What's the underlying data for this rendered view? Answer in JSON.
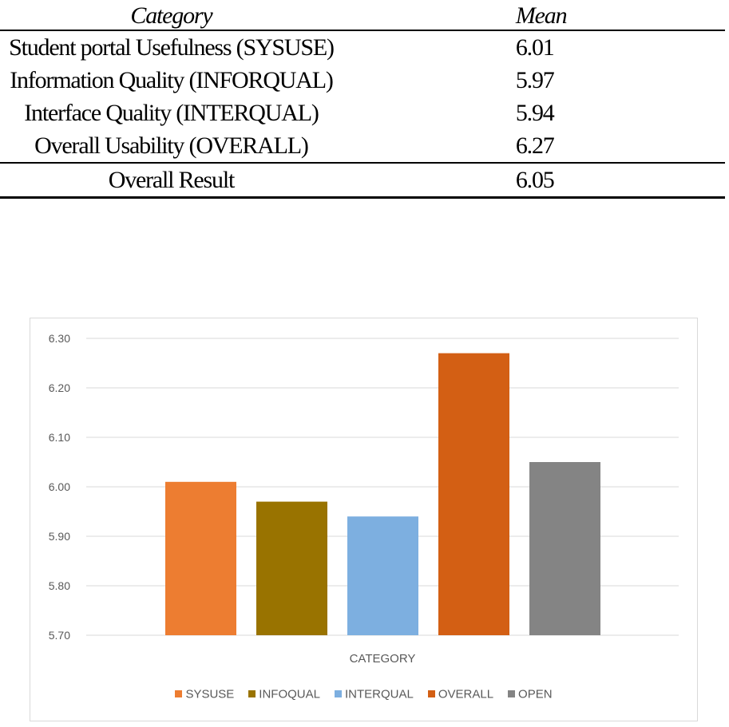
{
  "table": {
    "headers": {
      "category": "Category",
      "mean": "Mean"
    },
    "rows": [
      {
        "category": "Student portal Usefulness (SYSUSE)",
        "mean": "6.01"
      },
      {
        "category": "Information Quality (INFORQUAL)",
        "mean": "5.97"
      },
      {
        "category": "Interface Quality (INTERQUAL)",
        "mean": "5.94"
      },
      {
        "category": "Overall Usability (OVERALL)",
        "mean": "6.27"
      }
    ],
    "total": {
      "category": "Overall Result",
      "mean": "6.05"
    }
  },
  "chart_data": {
    "type": "bar",
    "title": "",
    "xlabel": "CATEGORY",
    "ylabel": "",
    "ylim": [
      5.7,
      6.3
    ],
    "yticks": [
      "5.70",
      "5.80",
      "5.90",
      "6.00",
      "6.10",
      "6.20",
      "6.30"
    ],
    "grid": true,
    "legend_position": "bottom",
    "categories": [
      "CATEGORY"
    ],
    "series": [
      {
        "name": "SYSUSE",
        "values": [
          6.01
        ],
        "color": "#ED7D31"
      },
      {
        "name": "INFOQUAL",
        "values": [
          5.97
        ],
        "color": "#997300"
      },
      {
        "name": "INTERQUAL",
        "values": [
          5.94
        ],
        "color": "#7DAFE0"
      },
      {
        "name": "OVERALL",
        "values": [
          6.27
        ],
        "color": "#D35F14"
      },
      {
        "name": "OPEN",
        "values": [
          6.05
        ],
        "color": "#848484"
      }
    ]
  }
}
